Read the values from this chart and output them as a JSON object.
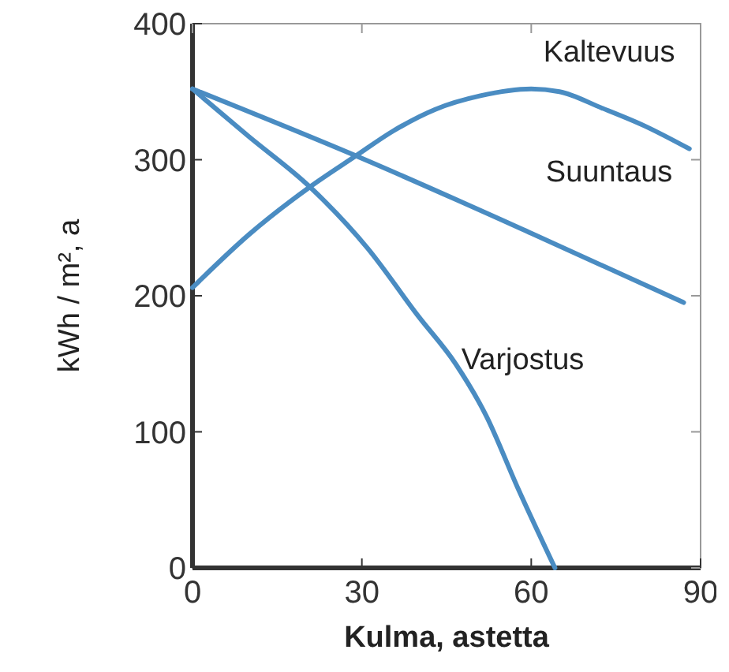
{
  "chart_data": {
    "type": "line",
    "xlabel": "Kulma, astetta",
    "ylabel": "kWh / m², a",
    "xlim": [
      0,
      90
    ],
    "xticks": [
      0,
      30,
      60,
      90
    ],
    "ylim": [
      0,
      400
    ],
    "yticks": [
      0,
      100,
      200,
      300,
      400
    ],
    "grid": false,
    "marker": "none",
    "line_style": "solid",
    "series": [
      {
        "name": "Kaltevuus",
        "color": "#4a8cc2",
        "x": [
          0,
          10,
          20.8,
          29,
          35.5,
          43,
          51,
          60,
          65,
          72.5,
          80,
          88
        ],
        "values": [
          206,
          245,
          280,
          303,
          321,
          337,
          347,
          352,
          350,
          338,
          325,
          308
        ]
      },
      {
        "name": "Suuntaus",
        "color": "#4a8cc2",
        "x": [
          0,
          30,
          60,
          87
        ],
        "values": [
          352,
          301,
          246,
          195
        ]
      },
      {
        "name": "Varjostus",
        "color": "#4a8cc2",
        "x": [
          0,
          10,
          20.8,
          31,
          40,
          46.6,
          52,
          57.7,
          64.2
        ],
        "values": [
          352,
          317,
          280,
          235,
          185,
          150,
          112,
          58,
          0
        ]
      }
    ]
  }
}
